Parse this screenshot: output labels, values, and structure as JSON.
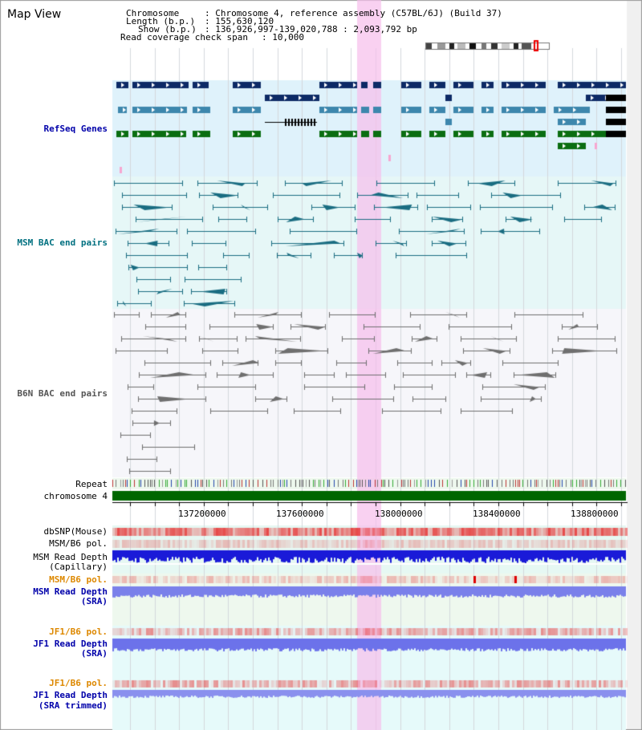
{
  "view_title": "Map View",
  "header": {
    "chromosome_key": "Chromosome    ",
    "chromosome_val": ": Chromosome 4, reference assembly (C57BL/6J) (Build 37)",
    "length_key": "Length (b.p.)",
    "length_val": ": 155,630,120",
    "show_key": "Show (b.p.)",
    "show_val": ": 136,926,997-139,020,788 : 2,093,792 bp",
    "coverage_key": "Read coverage check span",
    "coverage_val": ": 10,000"
  },
  "tracks": {
    "refseq": "RefSeq Genes",
    "msm_bac": "MSM BAC end pairs",
    "b6n_bac": "B6N BAC end pairs",
    "repeat": "Repeat",
    "chromosome": "chromosome 4",
    "dbsnp": "dbSNP(Mouse)",
    "msm_b6_pol": "MSM/B6 pol.",
    "msm_read_depth_cap_1": "MSM Read Depth",
    "msm_read_depth_cap_2": "(Capillary)",
    "msm_b6_pol_sra": "MSM/B6 pol.",
    "msm_read_depth_sra_1": "MSM Read Depth",
    "msm_read_depth_sra_2": "(SRA)",
    "jf1_b6_pol": "JF1/B6 pol.",
    "jf1_read_depth_1": "JF1 Read Depth",
    "jf1_read_depth_2": "(SRA)",
    "jf1_b6_pol_trim": "JF1/B6 pol.",
    "jf1_read_depth_trim_1": "JF1 Read Depth",
    "jf1_read_depth_trim_2": "(SRA trimmed)"
  },
  "ruler_ticks": [
    "137200000",
    "137600000",
    "138000000",
    "138400000",
    "138800000"
  ],
  "colors": {
    "refseq_label": "#0000aa",
    "bac_label": "#007080",
    "b6n_label": "#555555",
    "pol_label_orange": "#dd8800",
    "depth_label_blue": "#0000aa",
    "highlight": "#f7d4f0",
    "chromosome_bar": "#006600"
  }
}
